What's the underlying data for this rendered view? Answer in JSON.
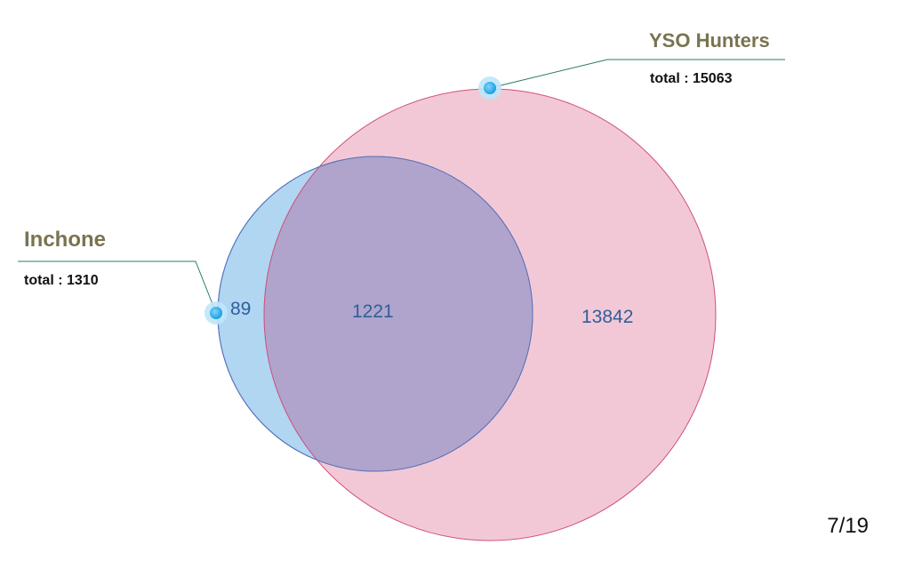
{
  "diagram": {
    "type": "venn",
    "sets": [
      {
        "id": "inchone",
        "name": "Inchone",
        "total_label": "total : 1310",
        "total": 1310,
        "fill": "#8ec5ec",
        "stroke": "#3a78b8",
        "marker": "#22a8e8"
      },
      {
        "id": "yso",
        "name": "YSO Hunters",
        "total_label": "total : 15063",
        "total": 15063,
        "fill": "#ecaac0",
        "stroke": "#d0507a",
        "marker": "#22a8e8"
      }
    ],
    "regions": {
      "inchone_only": "89",
      "overlap": "1221",
      "yso_only": "13842"
    },
    "leader_line_color": "#2a7a6a",
    "overlap_fill": "#b0a4cc",
    "overlap_stroke": "#5a70b8"
  },
  "page": {
    "number": "7/19"
  }
}
